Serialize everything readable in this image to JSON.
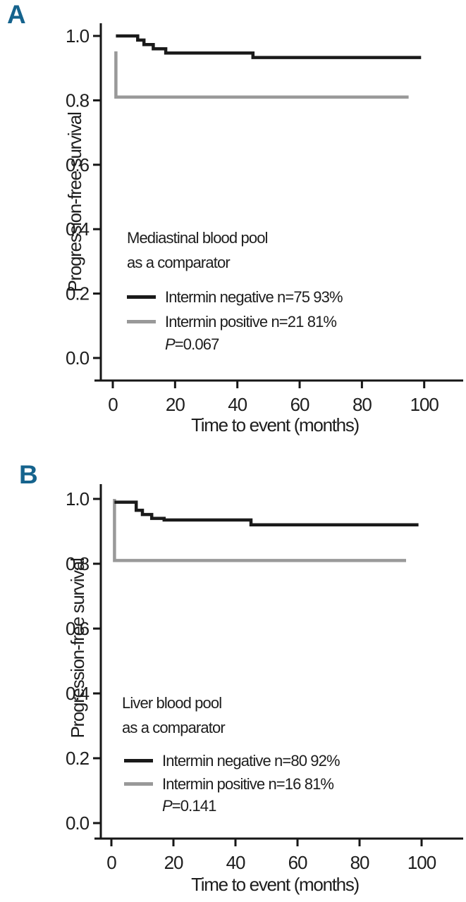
{
  "colors": {
    "axis": "#161616",
    "text": "#1d1d1d",
    "panel_label_blue": "#15638d",
    "negative_curve": "#1a1a1a",
    "positive_curve": "#999999"
  },
  "figure": {
    "panels": [
      {
        "label": "A",
        "annotation": {
          "line1": "Mediastinal blood pool",
          "line2": "as a comparator"
        },
        "p_italic": "P",
        "p_rest": "=0.067"
      },
      {
        "label": "B",
        "annotation": {
          "line1": "Liver blood pool",
          "line2": "as a comparator"
        },
        "p_italic": "P",
        "p_rest": "=0.141"
      }
    ]
  },
  "chart_data": [
    {
      "type": "line",
      "subtype": "kaplan-meier-step",
      "title": "Mediastinal blood pool as a comparator",
      "xlabel": "Time to event (months)",
      "ylabel": "Progression-free survival",
      "xlim": [
        0,
        100
      ],
      "ylim": [
        0.0,
        1.0
      ],
      "grid": false,
      "legend_position": "inside-lower-left",
      "x_ticks": [
        0,
        20,
        40,
        60,
        80,
        100
      ],
      "x_tick_labels": [
        "0",
        "20",
        "40",
        "60",
        "80",
        "100"
      ],
      "y_ticks": [
        0.0,
        0.2,
        0.4,
        0.6,
        0.8,
        1.0
      ],
      "y_tick_labels": [
        "0.0",
        "0.2",
        "0.4",
        "0.6",
        "0.8",
        "1.0"
      ],
      "p_value": "P=0.067",
      "series": [
        {
          "name": "Intermin negative n=75 93%",
          "n": 75,
          "final_percent": 93,
          "color": "#1a1a1a",
          "points": [
            [
              1,
              1.0
            ],
            [
              8,
              1.0
            ],
            [
              8,
              0.987
            ],
            [
              10,
              0.987
            ],
            [
              10,
              0.973
            ],
            [
              13,
              0.973
            ],
            [
              13,
              0.96
            ],
            [
              17,
              0.96
            ],
            [
              17,
              0.947
            ],
            [
              45,
              0.947
            ],
            [
              45,
              0.933
            ],
            [
              99,
              0.933
            ]
          ]
        },
        {
          "name": "Intermin positive n=21 81%",
          "n": 21,
          "final_percent": 81,
          "color": "#999999",
          "points": [
            [
              1,
              0.952
            ],
            [
              1,
              0.81
            ],
            [
              95,
              0.81
            ]
          ]
        }
      ]
    },
    {
      "type": "line",
      "subtype": "kaplan-meier-step",
      "title": "Liver blood pool as a comparator",
      "xlabel": "Time to event (months)",
      "ylabel": "Progression-free survival",
      "xlim": [
        0,
        100
      ],
      "ylim": [
        0.0,
        1.0
      ],
      "grid": false,
      "legend_position": "inside-lower-left",
      "x_ticks": [
        0,
        20,
        40,
        60,
        80,
        100
      ],
      "x_tick_labels": [
        "0",
        "20",
        "40",
        "60",
        "80",
        "100"
      ],
      "y_ticks": [
        0.0,
        0.2,
        0.4,
        0.6,
        0.8,
        1.0
      ],
      "y_tick_labels": [
        "0.0",
        "0.2",
        "0.4",
        "0.6",
        "0.8",
        "1.0"
      ],
      "p_value": "P=0.141",
      "series": [
        {
          "name": "Intermin negative n=80 92%",
          "n": 80,
          "final_percent": 92,
          "color": "#1a1a1a",
          "points": [
            [
              1,
              0.99
            ],
            [
              8,
              0.99
            ],
            [
              8,
              0.965
            ],
            [
              10,
              0.965
            ],
            [
              10,
              0.952
            ],
            [
              13,
              0.952
            ],
            [
              13,
              0.94
            ],
            [
              17,
              0.94
            ],
            [
              17,
              0.935
            ],
            [
              45,
              0.935
            ],
            [
              45,
              0.92
            ],
            [
              99,
              0.92
            ]
          ]
        },
        {
          "name": "Intermin positive n=16 81%",
          "n": 16,
          "final_percent": 81,
          "color": "#999999",
          "points": [
            [
              1,
              1.0
            ],
            [
              1,
              0.81
            ],
            [
              95,
              0.81
            ]
          ]
        }
      ]
    }
  ]
}
